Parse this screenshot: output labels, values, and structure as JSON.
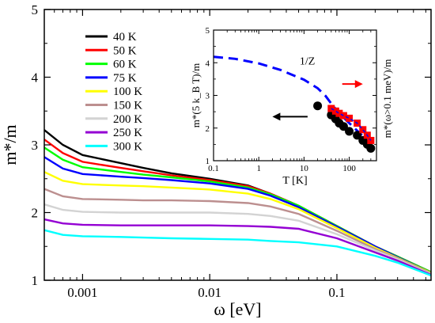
{
  "chart_data": [
    {
      "type": "line",
      "xlabel": "ω [eV]",
      "ylabel": "m*/m",
      "xscale": "log",
      "xlim": [
        0.0005,
        0.55
      ],
      "ylim": [
        1,
        5
      ],
      "xticks": [
        {
          "value": 0.001,
          "label": "0.001"
        },
        {
          "value": 0.01,
          "label": "0.01"
        },
        {
          "value": 0.1,
          "label": "0.1"
        }
      ],
      "yticks": [
        {
          "value": 1,
          "label": "1"
        },
        {
          "value": 2,
          "label": "2"
        },
        {
          "value": 3,
          "label": "3"
        },
        {
          "value": 4,
          "label": "4"
        },
        {
          "value": 5,
          "label": "5"
        }
      ],
      "grid": false,
      "legend_placement": "top-left",
      "series": [
        {
          "name": "40 K",
          "color": "#000000",
          "x": [
            0.0005,
            0.0007,
            0.001,
            0.002,
            0.003,
            0.005,
            0.01,
            0.02,
            0.03,
            0.05,
            0.1,
            0.2,
            0.3,
            0.55
          ],
          "y": [
            3.22,
            3.0,
            2.85,
            2.73,
            2.66,
            2.58,
            2.5,
            2.4,
            2.28,
            2.1,
            1.8,
            1.5,
            1.35,
            1.12
          ]
        },
        {
          "name": "50 K",
          "color": "#ff0000",
          "x": [
            0.0005,
            0.0007,
            0.001,
            0.002,
            0.003,
            0.005,
            0.01,
            0.02,
            0.03,
            0.05,
            0.1,
            0.2,
            0.3,
            0.55
          ],
          "y": [
            3.08,
            2.88,
            2.75,
            2.66,
            2.61,
            2.55,
            2.48,
            2.39,
            2.28,
            2.1,
            1.8,
            1.5,
            1.35,
            1.12
          ]
        },
        {
          "name": "60 K",
          "color": "#00ff00",
          "x": [
            0.0005,
            0.0007,
            0.001,
            0.002,
            0.003,
            0.005,
            0.01,
            0.02,
            0.03,
            0.05,
            0.1,
            0.2,
            0.3,
            0.55
          ],
          "y": [
            2.96,
            2.78,
            2.67,
            2.6,
            2.56,
            2.52,
            2.46,
            2.37,
            2.27,
            2.1,
            1.8,
            1.5,
            1.35,
            1.12
          ]
        },
        {
          "name": "75 K",
          "color": "#0000ff",
          "x": [
            0.0005,
            0.0007,
            0.001,
            0.002,
            0.003,
            0.005,
            0.01,
            0.02,
            0.03,
            0.05,
            0.1,
            0.2,
            0.3,
            0.55
          ],
          "y": [
            2.82,
            2.65,
            2.57,
            2.53,
            2.51,
            2.48,
            2.43,
            2.35,
            2.25,
            2.08,
            1.79,
            1.5,
            1.34,
            1.11
          ]
        },
        {
          "name": "100 K",
          "color": "#ffff00",
          "x": [
            0.0005,
            0.0007,
            0.001,
            0.002,
            0.003,
            0.005,
            0.01,
            0.02,
            0.03,
            0.05,
            0.1,
            0.2,
            0.3,
            0.55
          ],
          "y": [
            2.6,
            2.47,
            2.42,
            2.4,
            2.39,
            2.37,
            2.34,
            2.28,
            2.2,
            2.05,
            1.77,
            1.48,
            1.33,
            1.11
          ]
        },
        {
          "name": "150 K",
          "color": "#bc8f8f",
          "x": [
            0.0005,
            0.0007,
            0.001,
            0.002,
            0.003,
            0.005,
            0.01,
            0.02,
            0.03,
            0.05,
            0.1,
            0.2,
            0.3,
            0.55
          ],
          "y": [
            2.35,
            2.24,
            2.2,
            2.19,
            2.18,
            2.18,
            2.17,
            2.14,
            2.09,
            1.98,
            1.73,
            1.46,
            1.32,
            1.1
          ]
        },
        {
          "name": "200 K",
          "color": "#d3d3d3",
          "x": [
            0.0005,
            0.0007,
            0.001,
            0.002,
            0.003,
            0.005,
            0.01,
            0.02,
            0.03,
            0.05,
            0.1,
            0.2,
            0.3,
            0.55
          ],
          "y": [
            2.12,
            2.04,
            2.01,
            2.0,
            2.0,
            2.0,
            2.0,
            1.98,
            1.95,
            1.88,
            1.68,
            1.44,
            1.31,
            1.09
          ]
        },
        {
          "name": "250 K",
          "color": "#9400d3",
          "x": [
            0.0005,
            0.0007,
            0.001,
            0.002,
            0.003,
            0.005,
            0.01,
            0.02,
            0.03,
            0.05,
            0.1,
            0.2,
            0.3,
            0.55
          ],
          "y": [
            1.9,
            1.84,
            1.82,
            1.81,
            1.81,
            1.81,
            1.81,
            1.8,
            1.79,
            1.76,
            1.62,
            1.41,
            1.29,
            1.08
          ]
        },
        {
          "name": "300 K",
          "color": "#00ffff",
          "x": [
            0.0005,
            0.0007,
            0.001,
            0.002,
            0.003,
            0.005,
            0.01,
            0.02,
            0.03,
            0.05,
            0.1,
            0.2,
            0.3,
            0.55
          ],
          "y": [
            1.74,
            1.67,
            1.65,
            1.64,
            1.63,
            1.62,
            1.61,
            1.6,
            1.58,
            1.56,
            1.5,
            1.36,
            1.26,
            1.07
          ]
        }
      ]
    },
    {
      "type": "scatter",
      "xlabel": "T [K]",
      "ylabel": "m*(5 k_B T)/m",
      "ylabel_right": "m*(ω>0.1 meV)/m",
      "xscale": "log",
      "xlim": [
        0.1,
        400
      ],
      "ylim": [
        1,
        5
      ],
      "xticks": [
        {
          "value": 0.1,
          "label": "0.1"
        },
        {
          "value": 1,
          "label": "1"
        },
        {
          "value": 10,
          "label": "10"
        },
        {
          "value": 100,
          "label": "100"
        }
      ],
      "yticks": [
        {
          "value": 1,
          "label": "1"
        },
        {
          "value": 2,
          "label": "2"
        },
        {
          "value": 3,
          "label": "3"
        },
        {
          "value": 4,
          "label": "4"
        },
        {
          "value": 5,
          "label": "5"
        }
      ],
      "grid": false,
      "curve_label": "1/Z",
      "series": [
        {
          "name": "1/Z",
          "style": "dashed",
          "color": "#0000ff",
          "x": [
            0.1,
            0.3,
            1,
            3,
            10,
            20,
            30,
            40,
            60,
            100,
            150,
            200,
            300
          ],
          "y": [
            4.18,
            4.12,
            3.98,
            3.78,
            3.48,
            3.22,
            2.98,
            2.75,
            2.45,
            2.15,
            1.92,
            1.75,
            1.52
          ]
        },
        {
          "name": "",
          "marker": "circle",
          "color": "#000000",
          "x": [
            20,
            40,
            50,
            60,
            75,
            100,
            150,
            200,
            250,
            300
          ],
          "y": [
            2.68,
            2.4,
            2.28,
            2.15,
            2.05,
            1.9,
            1.78,
            1.62,
            1.5,
            1.38
          ]
        },
        {
          "name": "",
          "marker": "square",
          "color": "#ff0000",
          "x": [
            40,
            50,
            60,
            75,
            100,
            150,
            200,
            250,
            300
          ],
          "y": [
            2.6,
            2.52,
            2.45,
            2.38,
            2.3,
            2.15,
            1.95,
            1.78,
            1.62
          ]
        }
      ],
      "arrows": [
        {
          "direction": "left",
          "color": "#000000",
          "points_to_axis": "left"
        },
        {
          "direction": "right",
          "color": "#ff0000",
          "points_to_axis": "right"
        }
      ]
    }
  ]
}
